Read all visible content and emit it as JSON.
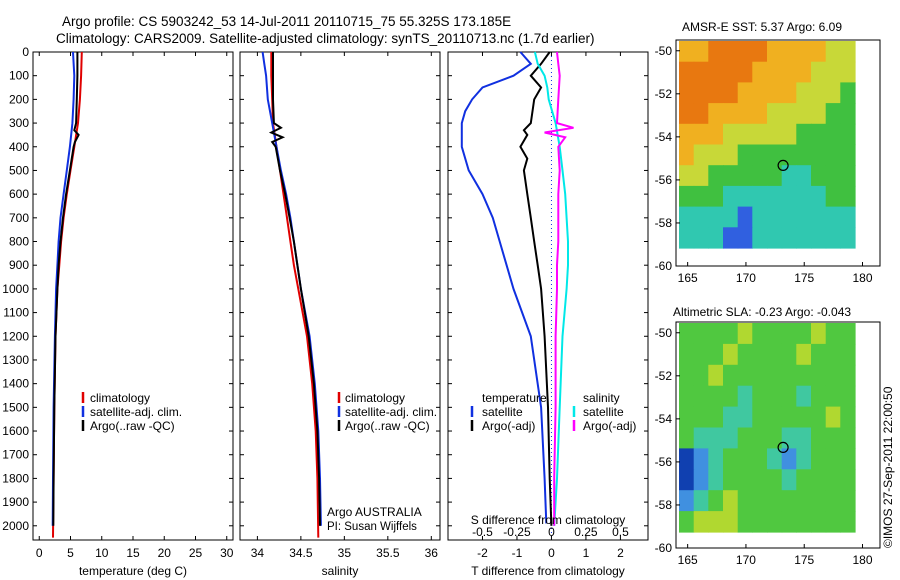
{
  "header": {
    "line1": "Argo profile: CS 5903242_53 14-Jul-2011 20110715_75 55.325S 173.185E",
    "line2": "Climatology: CARS2009. Satellite-adjusted climatology: synTS_20110713.nc (1.7d earlier)"
  },
  "colors": {
    "climatology": "#e00000",
    "satellite": "#1030e0",
    "argo": "#000000",
    "sat_salinity": "#00e8e8",
    "argo_salinity": "#ff00ff"
  },
  "depth_axis": {
    "ticks": [
      0,
      100,
      200,
      300,
      400,
      500,
      600,
      700,
      800,
      900,
      1000,
      1100,
      1200,
      1300,
      1400,
      1500,
      1600,
      1700,
      1800,
      1900,
      2000
    ],
    "range": [
      0,
      2060
    ]
  },
  "chart_data": [
    {
      "type": "line",
      "id": "temperature",
      "xlabel": "temperature (deg C)",
      "xlim": [
        -1,
        31
      ],
      "xticks": [
        0,
        5,
        10,
        15,
        20,
        25,
        30
      ],
      "legend": [
        "climatology",
        "satellite-adj. clim.",
        "Argo(..raw -QC)"
      ],
      "series": [
        {
          "name": "climatology",
          "color": "#e00000",
          "depth": [
            0,
            100,
            200,
            300,
            400,
            500,
            600,
            700,
            800,
            900,
            1000,
            1200,
            1500,
            1800,
            2050
          ],
          "values": [
            6.8,
            6.7,
            6.5,
            6.2,
            5.6,
            5.0,
            4.4,
            3.9,
            3.5,
            3.2,
            2.9,
            2.6,
            2.4,
            2.3,
            2.2
          ]
        },
        {
          "name": "satellite-adj. clim.",
          "color": "#1030e0",
          "depth": [
            0,
            100,
            200,
            300,
            400,
            500,
            600,
            700,
            800,
            900,
            1000,
            1200,
            1500,
            1800,
            2000
          ],
          "values": [
            5.4,
            5.6,
            5.5,
            5.3,
            4.9,
            4.4,
            3.9,
            3.4,
            3.1,
            2.9,
            2.7,
            2.5,
            2.3,
            2.2,
            2.15
          ]
        },
        {
          "name": "Argo(..raw -QC)",
          "color": "#000000",
          "depth": [
            0,
            100,
            200,
            300,
            330,
            350,
            380,
            400,
            500,
            600,
            700,
            800,
            900,
            1000,
            1200,
            1500,
            1800,
            2000
          ],
          "values": [
            6.1,
            6.1,
            6.0,
            5.9,
            5.6,
            6.3,
            5.7,
            5.5,
            4.9,
            4.3,
            3.8,
            3.4,
            3.1,
            2.9,
            2.6,
            2.4,
            2.3,
            2.25
          ]
        }
      ]
    },
    {
      "type": "line",
      "id": "salinity",
      "xlabel": "salinity",
      "xlim": [
        33.8,
        36.1
      ],
      "xticks": [
        34,
        34.5,
        35,
        35.5,
        36
      ],
      "legend": [
        "climatology",
        "satellite-adj. clim.",
        "Argo(..raw -QC)"
      ],
      "annotation": [
        "Argo AUSTRALIA",
        "PI: Susan Wijffels"
      ],
      "series": [
        {
          "name": "climatology",
          "color": "#e00000",
          "depth": [
            0,
            100,
            200,
            300,
            400,
            500,
            600,
            700,
            800,
            900,
            1000,
            1200,
            1400,
            1600,
            1800,
            2050
          ],
          "values": [
            34.16,
            34.16,
            34.17,
            34.18,
            34.22,
            34.26,
            34.3,
            34.34,
            34.38,
            34.42,
            34.47,
            34.57,
            34.63,
            34.67,
            34.69,
            34.7
          ]
        },
        {
          "name": "satellite-adj. clim.",
          "color": "#1030e0",
          "depth": [
            0,
            50,
            100,
            200,
            300,
            400,
            500,
            600,
            700,
            800,
            900,
            1000,
            1200,
            1400,
            1600,
            1800,
            2000
          ],
          "values": [
            34.06,
            34.08,
            34.1,
            34.12,
            34.17,
            34.22,
            34.27,
            34.33,
            34.38,
            34.42,
            34.46,
            34.5,
            34.6,
            34.66,
            34.7,
            34.72,
            34.73
          ]
        },
        {
          "name": "Argo(..raw -QC)",
          "color": "#000000",
          "depth": [
            0,
            100,
            200,
            300,
            320,
            340,
            360,
            380,
            400,
            500,
            600,
            700,
            800,
            900,
            1000,
            1200,
            1400,
            1600,
            1800,
            2000
          ],
          "values": [
            34.18,
            34.18,
            34.18,
            34.19,
            34.27,
            34.16,
            34.29,
            34.17,
            34.21,
            34.26,
            34.32,
            34.37,
            34.42,
            34.46,
            34.5,
            34.59,
            34.65,
            34.69,
            34.71,
            34.72
          ]
        }
      ]
    },
    {
      "type": "line",
      "id": "differences",
      "xlabel": "T difference from climatology",
      "xlabel_top": "S difference from climatology",
      "xlim": [
        -3,
        2.8
      ],
      "xticks": [
        -2,
        -1,
        0,
        1,
        2
      ],
      "sticks": [
        -0.5,
        -0.25,
        0,
        0.25,
        0.5
      ],
      "stick_labels": [
        "-0.5",
        "-0.25",
        "0",
        "0.25",
        "0.5"
      ],
      "legend_left": [
        "temperature",
        "satellite",
        "Argo(-adj)"
      ],
      "legend_right": [
        "salinity",
        "satellite",
        "Argo(-adj)"
      ],
      "series": [
        {
          "name": "T satellite",
          "color": "#1030e0",
          "depth": [
            0,
            50,
            100,
            150,
            200,
            250,
            300,
            400,
            500,
            600,
            700,
            800,
            900,
            1000,
            1200,
            1500,
            1800,
            1990
          ],
          "values": [
            -0.9,
            -0.6,
            -1.1,
            -2.0,
            -2.3,
            -2.5,
            -2.6,
            -2.6,
            -2.4,
            -2.0,
            -1.7,
            -1.5,
            -1.3,
            -1.1,
            -0.6,
            -0.3,
            -0.2,
            -0.15
          ]
        },
        {
          "name": "T Argo(-adj)",
          "color": "#000000",
          "depth": [
            0,
            50,
            100,
            150,
            200,
            300,
            330,
            350,
            400,
            450,
            500,
            600,
            700,
            800,
            900,
            1000,
            1200,
            1500,
            1800,
            2000
          ],
          "values": [
            -0.05,
            -0.3,
            -0.6,
            -0.3,
            -0.5,
            -0.6,
            -0.8,
            -0.7,
            -0.9,
            -0.7,
            -0.8,
            -0.7,
            -0.6,
            -0.5,
            -0.4,
            -0.3,
            -0.2,
            -0.1,
            -0.05,
            0.0
          ]
        },
        {
          "name": "S satellite",
          "color": "#00e8e8",
          "depth": [
            0,
            50,
            100,
            150,
            200,
            300,
            400,
            500,
            600,
            700,
            800,
            900,
            1000,
            1200,
            1500,
            1800,
            2000
          ],
          "values": [
            -0.12,
            -0.1,
            -0.05,
            -0.03,
            -0.02,
            0.03,
            0.06,
            0.08,
            0.1,
            0.11,
            0.12,
            0.12,
            0.11,
            0.08,
            0.06,
            0.04,
            0.02
          ]
        },
        {
          "name": "S Argo(-adj)",
          "color": "#ff00ff",
          "depth": [
            0,
            50,
            100,
            200,
            300,
            320,
            340,
            360,
            400,
            500,
            600,
            700,
            800,
            900,
            1000,
            1200,
            1500,
            1800,
            2000
          ],
          "values": [
            0.04,
            0.05,
            0.06,
            0.05,
            0.04,
            0.16,
            -0.05,
            0.1,
            0.05,
            0.06,
            0.05,
            0.05,
            0.05,
            0.04,
            0.04,
            0.03,
            0.03,
            0.02,
            0.02
          ]
        }
      ]
    },
    {
      "type": "heatmap",
      "id": "sst_map",
      "title": "AMSR-E SST: 5.37 Argo: 6.09",
      "xticks": [
        165,
        170,
        175,
        180
      ],
      "yticks": [
        -50,
        -52,
        -54,
        -56,
        -58,
        -60
      ],
      "xlim": [
        164,
        181.5
      ],
      "ylim": [
        -60,
        -49.5
      ],
      "profile": {
        "lon": 173.185,
        "lat": -55.325
      },
      "grid": [
        [
          4,
          4,
          5,
          5,
          5,
          5,
          4,
          4,
          4,
          4,
          3,
          3
        ],
        [
          5,
          5,
          5,
          5,
          5,
          4,
          4,
          4,
          4,
          3,
          3,
          3
        ],
        [
          5,
          5,
          5,
          5,
          4,
          4,
          4,
          4,
          3,
          3,
          3,
          2
        ],
        [
          5,
          5,
          4,
          4,
          4,
          4,
          3,
          3,
          3,
          3,
          2,
          2
        ],
        [
          4,
          4,
          4,
          3,
          3,
          3,
          3,
          3,
          2,
          2,
          2,
          2
        ],
        [
          4,
          3,
          3,
          3,
          2,
          2,
          2,
          2,
          2,
          2,
          2,
          2
        ],
        [
          3,
          3,
          2,
          2,
          2,
          2,
          2,
          1,
          1,
          2,
          2,
          2
        ],
        [
          2,
          2,
          2,
          1,
          1,
          1,
          1,
          1,
          1,
          1,
          2,
          2
        ],
        [
          1,
          1,
          1,
          1,
          0,
          1,
          1,
          1,
          1,
          1,
          1,
          1
        ],
        [
          1,
          1,
          1,
          0,
          0,
          1,
          1,
          1,
          1,
          1,
          1,
          1
        ]
      ]
    },
    {
      "type": "heatmap",
      "id": "sla_map",
      "title": "Altimetric SLA: -0.23 Argo: -0.043",
      "xticks": [
        165,
        170,
        175,
        180
      ],
      "yticks": [
        -50,
        -52,
        -54,
        -56,
        -58,
        -60
      ],
      "xlim": [
        164,
        181.5
      ],
      "ylim": [
        -60,
        -49.5
      ],
      "profile": {
        "lon": 173.185,
        "lat": -55.325
      },
      "grid": [
        [
          3,
          3,
          3,
          3,
          4,
          3,
          3,
          3,
          3,
          4,
          3,
          3
        ],
        [
          3,
          3,
          3,
          4,
          3,
          3,
          3,
          3,
          4,
          3,
          3,
          3
        ],
        [
          3,
          3,
          4,
          3,
          3,
          3,
          3,
          3,
          3,
          3,
          3,
          3
        ],
        [
          3,
          3,
          3,
          3,
          2,
          3,
          3,
          3,
          2,
          3,
          3,
          3
        ],
        [
          3,
          3,
          3,
          2,
          2,
          3,
          3,
          3,
          3,
          3,
          4,
          3
        ],
        [
          3,
          2,
          2,
          2,
          3,
          3,
          3,
          2,
          2,
          3,
          3,
          3
        ],
        [
          0,
          1,
          2,
          3,
          3,
          3,
          2,
          1,
          2,
          3,
          3,
          3
        ],
        [
          0,
          1,
          2,
          3,
          3,
          3,
          3,
          2,
          3,
          3,
          3,
          3
        ],
        [
          1,
          2,
          3,
          4,
          3,
          3,
          3,
          3,
          3,
          3,
          3,
          3
        ],
        [
          3,
          4,
          4,
          4,
          3,
          3,
          3,
          3,
          3,
          3,
          3,
          3
        ]
      ]
    }
  ],
  "footer": {
    "credit": "©IMOS 27-Sep-2011 22:00:50"
  }
}
